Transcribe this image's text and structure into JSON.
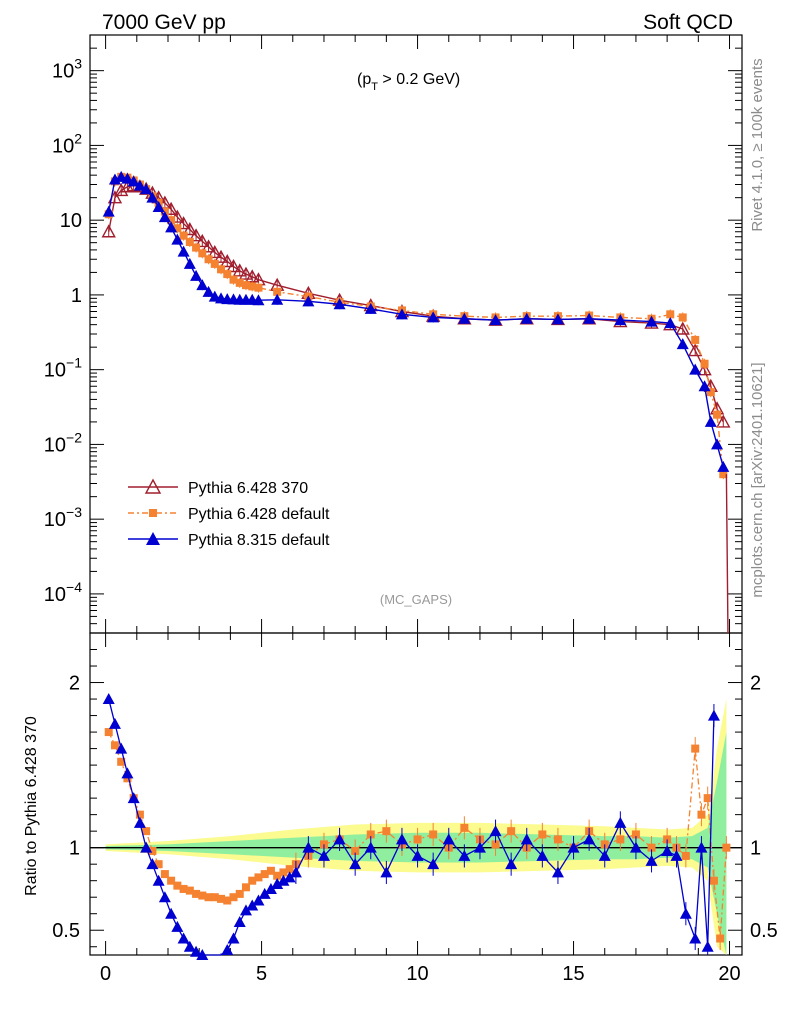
{
  "header": {
    "left_label": "7000 GeV pp",
    "right_label": "Soft QCD"
  },
  "side_labels": {
    "rivet": "Rivet 4.1.0, ≥ 100k events",
    "mcplots": "mcplots.cern.ch [arXiv:2401.10621]"
  },
  "chart_data": {
    "type": "line",
    "cut_label_prefix": "(p",
    "cut_label_sub": "T",
    "cut_label_suffix": " > 0.2 GeV)",
    "analysis_label": "(MC_GAPS)",
    "xlim": [
      -0.5,
      20.4
    ],
    "x_ticks": [
      "0",
      "5",
      "10",
      "15",
      "20"
    ],
    "main": {
      "yscale": "log",
      "ylim": [
        3e-05,
        3000
      ],
      "y_ticks": [
        {
          "value": 1000,
          "base": "10",
          "exp": "3"
        },
        {
          "value": 100,
          "base": "10",
          "exp": "2"
        },
        {
          "value": 10,
          "base": "10",
          "exp": ""
        },
        {
          "value": 1,
          "base": "1",
          "exp": ""
        },
        {
          "value": 0.1,
          "base": "10",
          "exp": "−1"
        },
        {
          "value": 0.01,
          "base": "10",
          "exp": "−2"
        },
        {
          "value": 0.001,
          "base": "10",
          "exp": "−3"
        },
        {
          "value": 0.0001,
          "base": "10",
          "exp": "−4"
        }
      ]
    },
    "ratio": {
      "ylabel": "Ratio to Pythia 6.428 370",
      "ylim": [
        0.35,
        2.3
      ],
      "y_ticks": [
        "0.5",
        "1",
        "2"
      ]
    },
    "legend_position": "bottom-left",
    "series": [
      {
        "name": "Pythia 6.428 370",
        "color": "#a01e2e",
        "marker": "open-triangle",
        "x": [
          0.1,
          0.3,
          0.5,
          0.7,
          0.9,
          1.1,
          1.3,
          1.5,
          1.7,
          1.9,
          2.1,
          2.3,
          2.5,
          2.7,
          2.9,
          3.1,
          3.3,
          3.5,
          3.7,
          3.9,
          4.1,
          4.3,
          4.5,
          4.7,
          4.9,
          5.5,
          6.5,
          7.5,
          8.5,
          9.5,
          10.5,
          11.5,
          12.5,
          13.5,
          14.5,
          15.5,
          16.5,
          17.5,
          18.1,
          18.5,
          18.9,
          19.2,
          19.4,
          19.6,
          19.8
        ],
        "values": [
          7.0,
          20,
          25,
          28,
          29,
          28,
          26,
          23,
          20,
          17,
          14,
          11,
          9.0,
          7.5,
          6.2,
          5.2,
          4.4,
          3.7,
          3.2,
          2.8,
          2.4,
          2.1,
          1.9,
          1.75,
          1.6,
          1.35,
          1.05,
          0.85,
          0.72,
          0.6,
          0.52,
          0.48,
          0.46,
          0.48,
          0.47,
          0.48,
          0.44,
          0.42,
          0.4,
          0.35,
          0.18,
          0.1,
          0.06,
          0.03,
          0.02
        ]
      },
      {
        "name": "Pythia 6.428 default",
        "color": "#f58231",
        "marker": "square",
        "x": [
          0.1,
          0.3,
          0.5,
          0.7,
          0.9,
          1.1,
          1.3,
          1.5,
          1.7,
          1.9,
          2.1,
          2.3,
          2.5,
          2.7,
          2.9,
          3.1,
          3.3,
          3.5,
          3.7,
          3.9,
          4.1,
          4.3,
          4.5,
          4.7,
          4.9,
          5.5,
          6.5,
          7.5,
          8.5,
          9.5,
          10.5,
          11.5,
          12.5,
          13.5,
          14.5,
          15.5,
          16.5,
          17.5,
          18.1,
          18.5,
          18.9,
          19.2,
          19.4,
          19.6,
          19.8
        ],
        "values": [
          12,
          33,
          38,
          37,
          34,
          30,
          26,
          21,
          17,
          13,
          10,
          7.8,
          6.2,
          5.1,
          4.3,
          3.6,
          3.0,
          2.6,
          2.2,
          1.9,
          1.6,
          1.45,
          1.35,
          1.3,
          1.25,
          1.1,
          0.95,
          0.8,
          0.7,
          0.62,
          0.55,
          0.52,
          0.5,
          0.52,
          0.52,
          0.53,
          0.5,
          0.48,
          0.55,
          0.5,
          0.25,
          0.12,
          0.05,
          0.025,
          0.004
        ]
      },
      {
        "name": "Pythia 8.315 default",
        "color": "#0000d0",
        "marker": "filled-triangle",
        "x": [
          0.1,
          0.3,
          0.5,
          0.7,
          0.9,
          1.1,
          1.3,
          1.5,
          1.7,
          1.9,
          2.1,
          2.3,
          2.5,
          2.7,
          2.9,
          3.1,
          3.3,
          3.5,
          3.7,
          3.9,
          4.1,
          4.3,
          4.5,
          4.7,
          4.9,
          5.5,
          6.5,
          7.5,
          8.5,
          9.5,
          10.5,
          11.5,
          12.5,
          13.5,
          14.5,
          15.5,
          16.5,
          17.5,
          18.1,
          18.5,
          18.9,
          19.2,
          19.4,
          19.6,
          19.8
        ],
        "values": [
          13,
          35,
          38,
          36,
          33,
          29,
          26,
          20,
          15,
          11,
          8.0,
          5.5,
          3.8,
          2.6,
          1.8,
          1.35,
          1.1,
          0.95,
          0.9,
          0.88,
          0.87,
          0.86,
          0.86,
          0.86,
          0.85,
          0.86,
          0.82,
          0.75,
          0.65,
          0.55,
          0.5,
          0.48,
          0.46,
          0.48,
          0.47,
          0.48,
          0.46,
          0.44,
          0.42,
          0.22,
          0.1,
          0.06,
          0.02,
          0.01,
          0.005
        ]
      }
    ],
    "ratio_series": [
      {
        "name": "Pythia 6.428 default",
        "x": [
          0.1,
          0.3,
          0.5,
          0.7,
          0.9,
          1.1,
          1.3,
          1.5,
          1.7,
          1.9,
          2.1,
          2.3,
          2.5,
          2.7,
          2.9,
          3.1,
          3.3,
          3.5,
          3.7,
          3.9,
          4.1,
          4.3,
          4.5,
          4.7,
          4.9,
          5.1,
          5.3,
          5.5,
          5.7,
          5.9,
          6.1,
          6.5,
          7.0,
          7.5,
          8.0,
          8.5,
          9.0,
          9.5,
          10.0,
          10.5,
          11.0,
          11.5,
          12.0,
          12.5,
          13.0,
          13.5,
          14.0,
          14.5,
          15.0,
          15.5,
          16.0,
          16.5,
          17.0,
          17.5,
          18.0,
          18.3,
          18.6,
          18.9,
          19.1,
          19.3,
          19.5,
          19.7,
          19.9
        ],
        "values": [
          1.7,
          1.62,
          1.52,
          1.42,
          1.3,
          1.2,
          1.1,
          0.98,
          0.9,
          0.84,
          0.8,
          0.77,
          0.75,
          0.74,
          0.72,
          0.71,
          0.7,
          0.7,
          0.69,
          0.68,
          0.7,
          0.72,
          0.76,
          0.8,
          0.82,
          0.84,
          0.86,
          0.83,
          0.85,
          0.87,
          0.9,
          0.95,
          1.02,
          1.05,
          0.98,
          1.08,
          1.1,
          1.02,
          1.05,
          1.08,
          1.0,
          1.12,
          1.05,
          1.02,
          1.1,
          1.0,
          1.08,
          1.05,
          1.0,
          1.1,
          1.02,
          1.05,
          1.08,
          1.0,
          1.05,
          1.0,
          0.95,
          1.6,
          1.2,
          1.3,
          0.8,
          0.45,
          1.0
        ]
      },
      {
        "name": "Pythia 8.315 default",
        "x": [
          0.1,
          0.3,
          0.5,
          0.7,
          0.9,
          1.1,
          1.3,
          1.5,
          1.7,
          1.9,
          2.1,
          2.3,
          2.5,
          2.7,
          2.9,
          3.1,
          3.3,
          3.5,
          3.7,
          3.9,
          4.1,
          4.3,
          4.5,
          4.7,
          4.9,
          5.1,
          5.3,
          5.5,
          5.7,
          5.9,
          6.1,
          6.5,
          7.0,
          7.5,
          8.0,
          8.5,
          9.0,
          9.5,
          10.0,
          10.5,
          11.0,
          11.5,
          12.0,
          12.5,
          13.0,
          13.5,
          14.0,
          14.5,
          15.0,
          15.5,
          16.0,
          16.5,
          17.0,
          17.5,
          18.0,
          18.3,
          18.6,
          18.9,
          19.1,
          19.3,
          19.5
        ],
        "values": [
          1.9,
          1.75,
          1.6,
          1.45,
          1.3,
          1.15,
          1.0,
          0.9,
          0.8,
          0.7,
          0.6,
          0.52,
          0.45,
          0.4,
          0.37,
          0.35,
          0.33,
          0.33,
          0.34,
          0.38,
          0.45,
          0.55,
          0.62,
          0.65,
          0.68,
          0.72,
          0.75,
          0.78,
          0.8,
          0.82,
          0.85,
          1.0,
          0.95,
          1.05,
          0.9,
          1.0,
          0.85,
          1.05,
          0.95,
          0.9,
          1.05,
          0.95,
          1.0,
          1.1,
          0.9,
          1.05,
          0.95,
          0.85,
          1.0,
          1.05,
          0.95,
          1.15,
          1.0,
          0.92,
          0.98,
          0.95,
          0.6,
          0.45,
          1.0,
          0.4,
          1.8
        ]
      }
    ]
  }
}
